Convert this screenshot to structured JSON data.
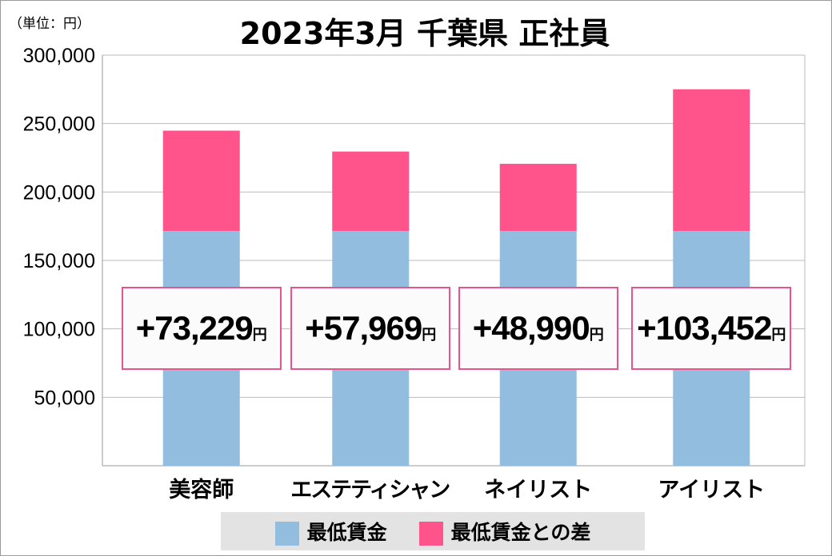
{
  "chart_data": {
    "type": "bar",
    "stacked": true,
    "title": "2023年3月 千葉県 正社員",
    "unit_label": "（単位：円）",
    "categories": [
      "美容師",
      "エステティシャン",
      "ネイリスト",
      "アイリスト"
    ],
    "series": [
      {
        "name": "最低賃金",
        "color": "#92bddf",
        "values": [
          171600,
          171600,
          171600,
          171600
        ]
      },
      {
        "name": "最低賃金との差",
        "color": "#fe548b",
        "values": [
          73229,
          57969,
          48990,
          103452
        ]
      }
    ],
    "data_labels": [
      "+73,229",
      "+57,969",
      "+48,990",
      "+103,452"
    ],
    "data_label_unit": "円",
    "yticks": [
      50000,
      100000,
      150000,
      200000,
      250000,
      300000
    ],
    "ytick_labels": [
      "50,000",
      "100,000",
      "150,000",
      "200,000",
      "250,000",
      "300,000"
    ],
    "ylim": [
      0,
      300000
    ],
    "grid": true,
    "legend": "bottom"
  }
}
